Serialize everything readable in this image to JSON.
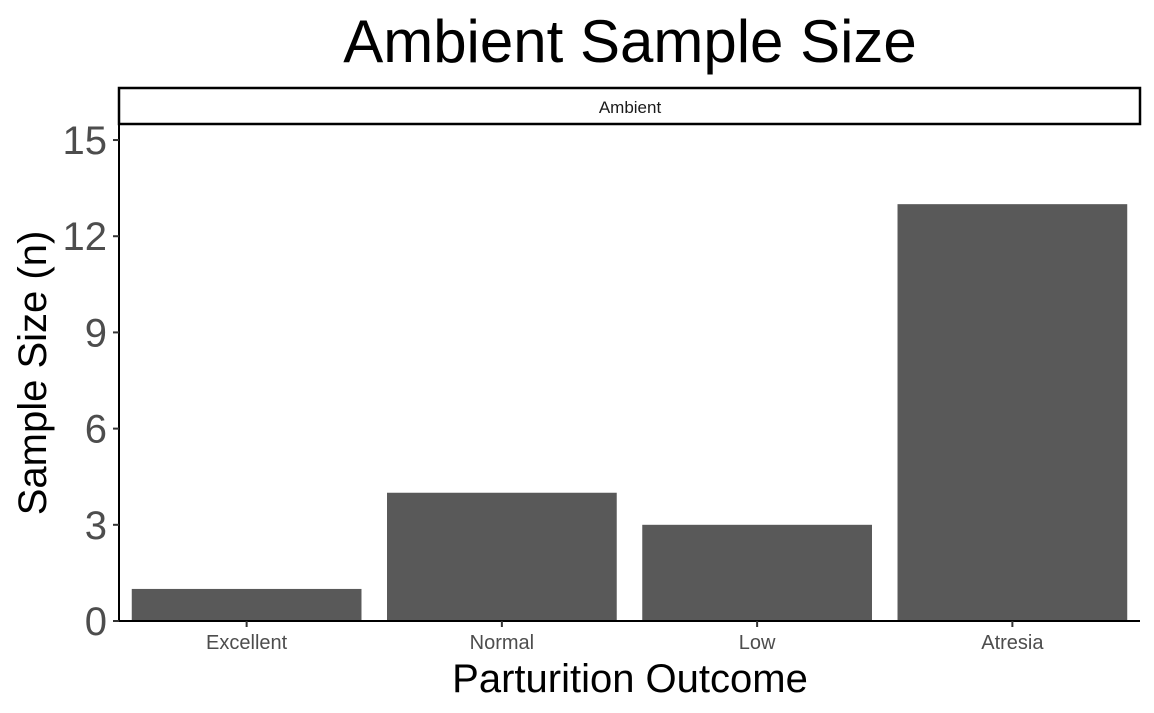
{
  "chart_data": {
    "type": "bar",
    "title": "Ambient Sample Size",
    "facet_label": "Ambient",
    "xlabel": "Parturition Outcome",
    "ylabel": "Sample Size (n)",
    "categories": [
      "Excellent",
      "Normal",
      "Low",
      "Atresia"
    ],
    "values": [
      1,
      4,
      3,
      13
    ],
    "ylim": [
      0,
      15.5
    ],
    "yticks": [
      0,
      3,
      6,
      9,
      12,
      15
    ],
    "grid": false,
    "legend": "none",
    "bar_color": "#595959",
    "axis_color": "#000000",
    "tick_label_color": "#4d4d4d"
  }
}
